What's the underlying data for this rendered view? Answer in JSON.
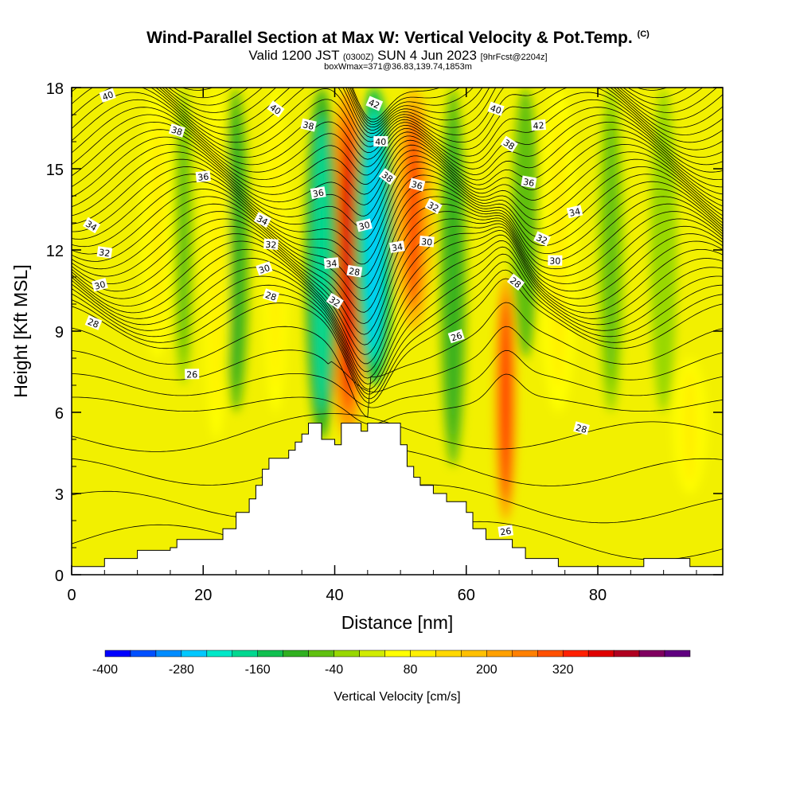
{
  "header": {
    "title": "Wind-Parallel Section at Max W: Vertical Velocity & Pot.Temp.",
    "copyright": "(C)",
    "subtitle_a": "Valid 1200 JST",
    "subtitle_b": "(0300Z)",
    "subtitle_c": "SUN 4 Jun 2023",
    "subtitle_d": "[9hrFcst@2204z]",
    "subtitle_e": "boxWmax=371@36.83,139.74,1853m"
  },
  "chart_data": {
    "type": "heatmap",
    "xlabel": "Distance [nm]",
    "ylabel": "Height [Kft MSL]",
    "xlim": [
      0,
      99
    ],
    "ylim": [
      0,
      18
    ],
    "x_ticks": [
      "0",
      "20",
      "40",
      "60",
      "80"
    ],
    "y_ticks": [
      "0",
      "3",
      "6",
      "9",
      "12",
      "15",
      "18"
    ],
    "colorbar": {
      "label": "Vertical Velocity [cm/s]",
      "tick_labels": [
        "-400",
        "-280",
        "-160",
        "-40",
        "80",
        "200",
        "320"
      ],
      "colors": [
        "#0000ff",
        "#0050ff",
        "#008cff",
        "#00c8ff",
        "#00e8c8",
        "#00d890",
        "#10c050",
        "#30b020",
        "#60c010",
        "#98d800",
        "#d0ec00",
        "#ffff00",
        "#fff000",
        "#ffd800",
        "#ffc000",
        "#ffa000",
        "#ff8000",
        "#ff5000",
        "#ff2000",
        "#e00000",
        "#b00020",
        "#800060",
        "#600080"
      ]
    },
    "velocity_features": [
      {
        "x": 42,
        "w": 3,
        "z0": 5,
        "z1": 18,
        "value": 340
      },
      {
        "x": 66,
        "w": 1.6,
        "z0": 2,
        "z1": 11,
        "value": 320
      },
      {
        "x": 52,
        "w": 3,
        "z0": 9,
        "z1": 18,
        "value": 260
      },
      {
        "x": 46,
        "w": 3,
        "z0": 7,
        "z1": 18,
        "value": -300
      },
      {
        "x": 38,
        "w": 2.5,
        "z0": 5,
        "z1": 18,
        "value": -220
      },
      {
        "x": 25,
        "w": 2,
        "z0": 6,
        "z1": 18,
        "value": -140
      },
      {
        "x": 58,
        "w": 2,
        "z0": 4,
        "z1": 18,
        "value": -120
      },
      {
        "x": 69,
        "w": 2,
        "z0": 8,
        "z1": 18,
        "value": -110
      },
      {
        "x": 17,
        "w": 1.5,
        "z0": 7,
        "z1": 18,
        "value": -90
      },
      {
        "x": 31,
        "w": 2,
        "z0": 6,
        "z1": 18,
        "value": 90
      },
      {
        "x": 13,
        "w": 2.5,
        "z0": 8,
        "z1": 18,
        "value": 90
      },
      {
        "x": 22,
        "w": 2,
        "z0": 5,
        "z1": 18,
        "value": 80
      },
      {
        "x": 74,
        "w": 3,
        "z0": 6,
        "z1": 18,
        "value": 90
      },
      {
        "x": 82,
        "w": 2,
        "z0": 6,
        "z1": 18,
        "value": -80
      },
      {
        "x": 90,
        "w": 2,
        "z0": 6,
        "z1": 18,
        "value": -70
      },
      {
        "x": 94,
        "w": 2.5,
        "z0": 3,
        "z1": 8,
        "value": 80
      }
    ],
    "terrain": [
      [
        0,
        0.3
      ],
      [
        5,
        0.3
      ],
      [
        5,
        0.6
      ],
      [
        10,
        0.6
      ],
      [
        10,
        0.9
      ],
      [
        15,
        0.9
      ],
      [
        15,
        1.0
      ],
      [
        16,
        1.0
      ],
      [
        16,
        1.3
      ],
      [
        23,
        1.3
      ],
      [
        23,
        1.7
      ],
      [
        25,
        1.7
      ],
      [
        25,
        2.3
      ],
      [
        27,
        2.3
      ],
      [
        27,
        2.8
      ],
      [
        28,
        2.8
      ],
      [
        28,
        3.3
      ],
      [
        29,
        3.3
      ],
      [
        29,
        3.9
      ],
      [
        30,
        3.9
      ],
      [
        30,
        4.3
      ],
      [
        33,
        4.3
      ],
      [
        33,
        4.6
      ],
      [
        34,
        4.6
      ],
      [
        34,
        4.9
      ],
      [
        35,
        4.9
      ],
      [
        35,
        5.2
      ],
      [
        36,
        5.2
      ],
      [
        36,
        5.6
      ],
      [
        38,
        5.6
      ],
      [
        38,
        5.0
      ],
      [
        40,
        5.0
      ],
      [
        40,
        4.8
      ],
      [
        41,
        4.8
      ],
      [
        41,
        5.6
      ],
      [
        44,
        5.6
      ],
      [
        44,
        5.3
      ],
      [
        45,
        5.3
      ],
      [
        45,
        5.6
      ],
      [
        50,
        5.6
      ],
      [
        50,
        4.8
      ],
      [
        51,
        4.8
      ],
      [
        51,
        4.0
      ],
      [
        52,
        4.0
      ],
      [
        52,
        3.6
      ],
      [
        53,
        3.6
      ],
      [
        53,
        3.3
      ],
      [
        55,
        3.3
      ],
      [
        55,
        3.0
      ],
      [
        57,
        3.0
      ],
      [
        57,
        2.7
      ],
      [
        60,
        2.7
      ],
      [
        60,
        2.3
      ],
      [
        61,
        2.3
      ],
      [
        61,
        1.7
      ],
      [
        63,
        1.7
      ],
      [
        63,
        1.3
      ],
      [
        67,
        1.3
      ],
      [
        67,
        1.0
      ],
      [
        69,
        1.0
      ],
      [
        69,
        0.6
      ],
      [
        74,
        0.6
      ],
      [
        74,
        0.3
      ],
      [
        80,
        0.3
      ],
      [
        80,
        0.3
      ],
      [
        87,
        0.3
      ],
      [
        87,
        0.6
      ],
      [
        94,
        0.6
      ],
      [
        94,
        0.3
      ],
      [
        99,
        0.3
      ]
    ],
    "theta_levels": [
      26,
      28,
      30,
      32,
      34,
      36,
      38,
      40,
      42
    ],
    "theta_contour_labels": [
      {
        "text": "40",
        "x": 5.5,
        "z": 17.7
      },
      {
        "text": "38",
        "x": 16,
        "z": 16.4
      },
      {
        "text": "36",
        "x": 20,
        "z": 14.7
      },
      {
        "text": "34",
        "x": 3,
        "z": 12.9
      },
      {
        "text": "32",
        "x": 5,
        "z": 11.9
      },
      {
        "text": "30",
        "x": 4.3,
        "z": 10.7
      },
      {
        "text": "28",
        "x": 3.3,
        "z": 9.3
      },
      {
        "text": "26",
        "x": 18.3,
        "z": 7.4
      },
      {
        "text": "40",
        "x": 31,
        "z": 17.2
      },
      {
        "text": "38",
        "x": 36,
        "z": 16.6
      },
      {
        "text": "36",
        "x": 37.5,
        "z": 14.1
      },
      {
        "text": "34",
        "x": 29,
        "z": 13.1
      },
      {
        "text": "32",
        "x": 30.3,
        "z": 12.2
      },
      {
        "text": "30",
        "x": 29.3,
        "z": 11.3
      },
      {
        "text": "28",
        "x": 30.3,
        "z": 10.3
      },
      {
        "text": "34",
        "x": 39.5,
        "z": 11.5
      },
      {
        "text": "32",
        "x": 40,
        "z": 10.1
      },
      {
        "text": "28",
        "x": 43,
        "z": 11.2
      },
      {
        "text": "30",
        "x": 44.5,
        "z": 12.9
      },
      {
        "text": "42",
        "x": 46,
        "z": 17.4
      },
      {
        "text": "40",
        "x": 47,
        "z": 16
      },
      {
        "text": "38",
        "x": 48,
        "z": 14.7
      },
      {
        "text": "36",
        "x": 52.5,
        "z": 14.4
      },
      {
        "text": "34",
        "x": 49.5,
        "z": 12.1
      },
      {
        "text": "32",
        "x": 55,
        "z": 13.6
      },
      {
        "text": "30",
        "x": 54,
        "z": 12.3
      },
      {
        "text": "26",
        "x": 58.5,
        "z": 8.8
      },
      {
        "text": "40",
        "x": 64.5,
        "z": 17.2
      },
      {
        "text": "42",
        "x": 71,
        "z": 16.6
      },
      {
        "text": "38",
        "x": 66.5,
        "z": 15.9
      },
      {
        "text": "36",
        "x": 69.5,
        "z": 14.5
      },
      {
        "text": "34",
        "x": 76.5,
        "z": 13.4
      },
      {
        "text": "32",
        "x": 71.5,
        "z": 12.4
      },
      {
        "text": "30",
        "x": 73.5,
        "z": 11.6
      },
      {
        "text": "28",
        "x": 67.5,
        "z": 10.8
      },
      {
        "text": "28",
        "x": 77.5,
        "z": 5.4
      },
      {
        "text": "26",
        "x": 66,
        "z": 1.6
      }
    ]
  }
}
